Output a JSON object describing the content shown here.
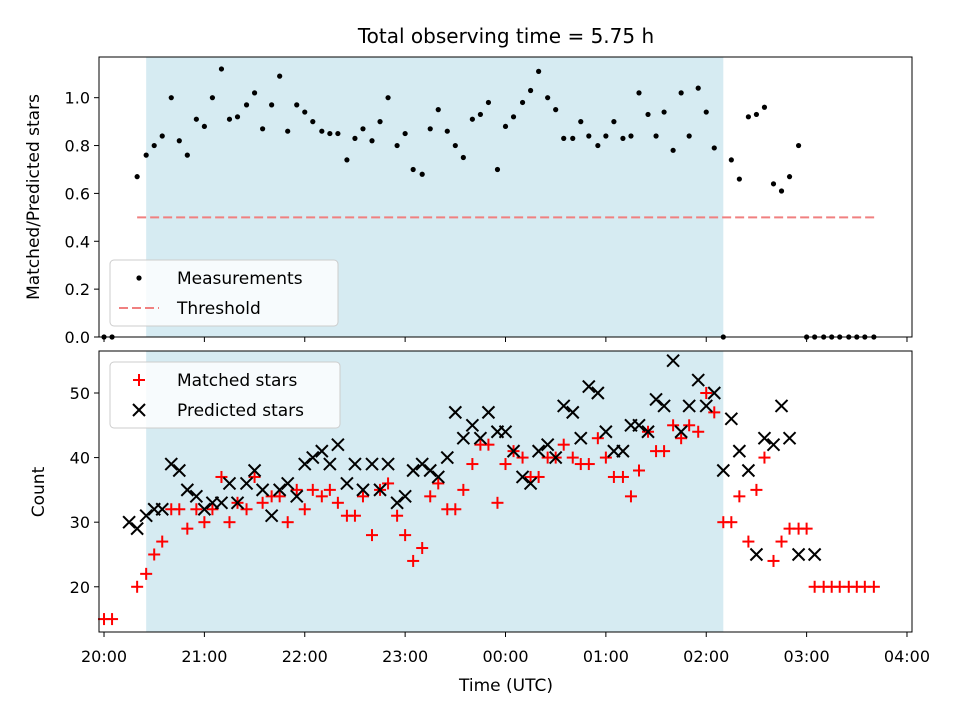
{
  "chart_data": {
    "title": "Total observing time = 5.75 h",
    "xlabel": "Time (UTC)",
    "x_unit": "hours since 20:00 UTC",
    "xlim": [
      -0.05,
      8.05
    ],
    "x_ticks": [
      0,
      1,
      2,
      3,
      4,
      5,
      6,
      7,
      8
    ],
    "x_tick_labels": [
      "20:00",
      "21:00",
      "22:00",
      "23:00",
      "00:00",
      "01:00",
      "02:00",
      "03:00",
      "04:00"
    ],
    "observing_window": {
      "start": 0.42,
      "end": 6.17,
      "color": "#add8e6"
    },
    "panels": [
      {
        "type": "scatter",
        "ylabel": "Matched/Predicted stars",
        "ylim": [
          0,
          1.17
        ],
        "y_ticks": [
          0.0,
          0.2,
          0.4,
          0.6,
          0.8,
          1.0
        ],
        "y_tick_labels": [
          "0.0",
          "0.2",
          "0.4",
          "0.6",
          "0.8",
          "1.0"
        ],
        "threshold": {
          "name": "Threshold",
          "value": 0.5,
          "x_range": [
            0.33,
            7.7
          ],
          "color": "#f08080"
        },
        "legend": {
          "location": "lower-left",
          "entries": [
            "Measurements",
            "Threshold"
          ]
        },
        "series": [
          {
            "name": "Measurements",
            "marker": "dot",
            "color": "#000000",
            "x": [
              0.33,
              0.42,
              0.5,
              0.58,
              0.67,
              0.75,
              0.83,
              0.92,
              1.0,
              1.08,
              1.17,
              1.25,
              1.33,
              1.42,
              1.5,
              1.58,
              1.67,
              1.75,
              1.83,
              1.92,
              2.0,
              2.08,
              2.17,
              2.25,
              2.33,
              2.42,
              2.5,
              2.58,
              2.67,
              2.75,
              2.83,
              2.92,
              3.0,
              3.08,
              3.17,
              3.25,
              3.33,
              3.42,
              3.5,
              3.58,
              3.67,
              3.75,
              3.83,
              3.92,
              4.0,
              4.08,
              4.17,
              4.25,
              4.33,
              4.42,
              4.5,
              4.58,
              4.67,
              4.75,
              4.83,
              4.92,
              5.0,
              5.08,
              5.17,
              5.25,
              5.33,
              5.42,
              5.5,
              5.58,
              5.67,
              5.75,
              5.83,
              5.92,
              6.0,
              6.08,
              6.17,
              6.25,
              6.33,
              6.42,
              6.5,
              6.58,
              6.67,
              6.75,
              6.83,
              6.92,
              7.0,
              7.08,
              7.17,
              7.25,
              7.33,
              7.42,
              7.5,
              7.58,
              7.67
            ],
            "y": [
              0.67,
              0.76,
              0.8,
              0.84,
              1.0,
              0.82,
              0.76,
              0.91,
              0.88,
              1.0,
              1.12,
              0.91,
              0.92,
              0.97,
              1.02,
              0.87,
              0.97,
              1.09,
              0.86,
              0.97,
              0.94,
              0.9,
              0.86,
              0.85,
              0.85,
              0.74,
              0.83,
              0.87,
              0.82,
              0.9,
              1.0,
              0.8,
              0.85,
              0.7,
              0.68,
              0.87,
              0.95,
              0.86,
              0.8,
              0.75,
              0.91,
              0.93,
              0.98,
              0.7,
              0.88,
              0.92,
              0.98,
              1.03,
              1.11,
              1.0,
              0.95,
              0.83,
              0.83,
              0.9,
              0.84,
              0.8,
              0.84,
              0.9,
              0.83,
              0.84,
              1.02,
              0.93,
              0.84,
              0.94,
              0.78,
              1.02,
              0.84,
              1.04,
              0.94,
              0.79,
              0.0,
              0.74,
              0.66,
              0.92,
              0.93,
              0.96,
              0.64,
              0.61,
              0.67,
              0.8,
              0.0,
              0.0,
              0.0,
              0.0,
              0.0,
              0.0,
              0.0,
              0.0,
              0.0
            ]
          }
        ],
        "extra_points": {
          "x": [
            0.0,
            0.08
          ],
          "y": [
            0.0,
            0.0
          ]
        }
      },
      {
        "type": "scatter",
        "ylabel": "Count",
        "ylim": [
          13,
          56.5
        ],
        "y_ticks": [
          20,
          30,
          40,
          50
        ],
        "y_tick_labels": [
          "20",
          "30",
          "40",
          "50"
        ],
        "legend": {
          "location": "upper-left",
          "entries": [
            "Matched stars",
            "Predicted stars"
          ]
        },
        "series": [
          {
            "name": "Matched stars",
            "marker": "plus",
            "color": "#ff0000",
            "x": [
              0.33,
              0.42,
              0.5,
              0.58,
              0.67,
              0.75,
              0.83,
              0.92,
              1.0,
              1.08,
              1.17,
              1.25,
              1.33,
              1.42,
              1.5,
              1.58,
              1.67,
              1.75,
              1.83,
              1.92,
              2.0,
              2.08,
              2.17,
              2.25,
              2.33,
              2.42,
              2.5,
              2.58,
              2.67,
              2.75,
              2.83,
              2.92,
              3.0,
              3.08,
              3.17,
              3.25,
              3.33,
              3.42,
              3.5,
              3.58,
              3.67,
              3.75,
              3.83,
              3.92,
              4.0,
              4.08,
              4.17,
              4.25,
              4.33,
              4.42,
              4.5,
              4.58,
              4.67,
              4.75,
              4.83,
              4.92,
              5.0,
              5.08,
              5.17,
              5.25,
              5.33,
              5.42,
              5.5,
              5.58,
              5.67,
              5.75,
              5.83,
              5.92,
              6.0,
              6.08,
              6.17,
              6.25,
              6.33,
              6.42,
              6.5,
              6.58,
              6.67,
              6.75,
              6.83,
              6.92,
              7.0,
              7.08,
              7.17,
              7.25,
              7.33,
              7.42,
              7.5,
              7.58,
              7.67
            ],
            "y": [
              20,
              22,
              25,
              27,
              32,
              32,
              29,
              32,
              30,
              32,
              37,
              30,
              33,
              32,
              37,
              33,
              34,
              34,
              30,
              35,
              32,
              35,
              34,
              35,
              33,
              31,
              31,
              34,
              28,
              35,
              36,
              31,
              28,
              24,
              26,
              34,
              36,
              32,
              32,
              35,
              39,
              42,
              42,
              33,
              39,
              41,
              40,
              37,
              37,
              40,
              40,
              42,
              40,
              39,
              39,
              43,
              40,
              37,
              37,
              34,
              38,
              44,
              41,
              41,
              45,
              43,
              45,
              44,
              50,
              47,
              30,
              30,
              34,
              27,
              35,
              40,
              24,
              27,
              29,
              29,
              29,
              20,
              20,
              20,
              20,
              20,
              20,
              20,
              20
            ],
            "extra_points": {
              "x": [
                0.0,
                0.08
              ],
              "y": [
                15,
                15
              ]
            }
          },
          {
            "name": "Predicted stars",
            "marker": "x",
            "color": "#000000",
            "x": [
              0.25,
              0.33,
              0.42,
              0.5,
              0.58,
              0.67,
              0.75,
              0.83,
              0.92,
              1.0,
              1.08,
              1.17,
              1.25,
              1.33,
              1.42,
              1.5,
              1.58,
              1.67,
              1.75,
              1.83,
              1.92,
              2.0,
              2.08,
              2.17,
              2.25,
              2.33,
              2.42,
              2.5,
              2.58,
              2.67,
              2.75,
              2.83,
              2.92,
              3.0,
              3.08,
              3.17,
              3.25,
              3.33,
              3.42,
              3.5,
              3.58,
              3.67,
              3.75,
              3.83,
              3.92,
              4.0,
              4.08,
              4.17,
              4.25,
              4.33,
              4.42,
              4.5,
              4.58,
              4.67,
              4.75,
              4.83,
              4.92,
              5.0,
              5.08,
              5.17,
              5.25,
              5.33,
              5.42,
              5.5,
              5.58,
              5.67,
              5.75,
              5.83,
              5.92,
              6.0,
              6.08,
              6.17,
              6.25,
              6.33,
              6.42,
              6.5,
              6.58,
              6.67,
              6.75,
              6.83,
              6.92,
              7.08
            ],
            "y": [
              30,
              29,
              31,
              32,
              32,
              39,
              38,
              35,
              34,
              32,
              33,
              33,
              36,
              33,
              36,
              38,
              35,
              31,
              35,
              36,
              34,
              39,
              40,
              41,
              39,
              42,
              36,
              39,
              35,
              39,
              35,
              39,
              33,
              34,
              38,
              39,
              38,
              37,
              40,
              47,
              43,
              45,
              43,
              47,
              44,
              44,
              41,
              37,
              36,
              41,
              42,
              40,
              48,
              47,
              43,
              51,
              50,
              44,
              41,
              41,
              45,
              45,
              44,
              49,
              48,
              55,
              44,
              48,
              52,
              48,
              50,
              38,
              46,
              41,
              38,
              25,
              43,
              42,
              48,
              43,
              25,
              25
            ]
          }
        ]
      }
    ]
  }
}
